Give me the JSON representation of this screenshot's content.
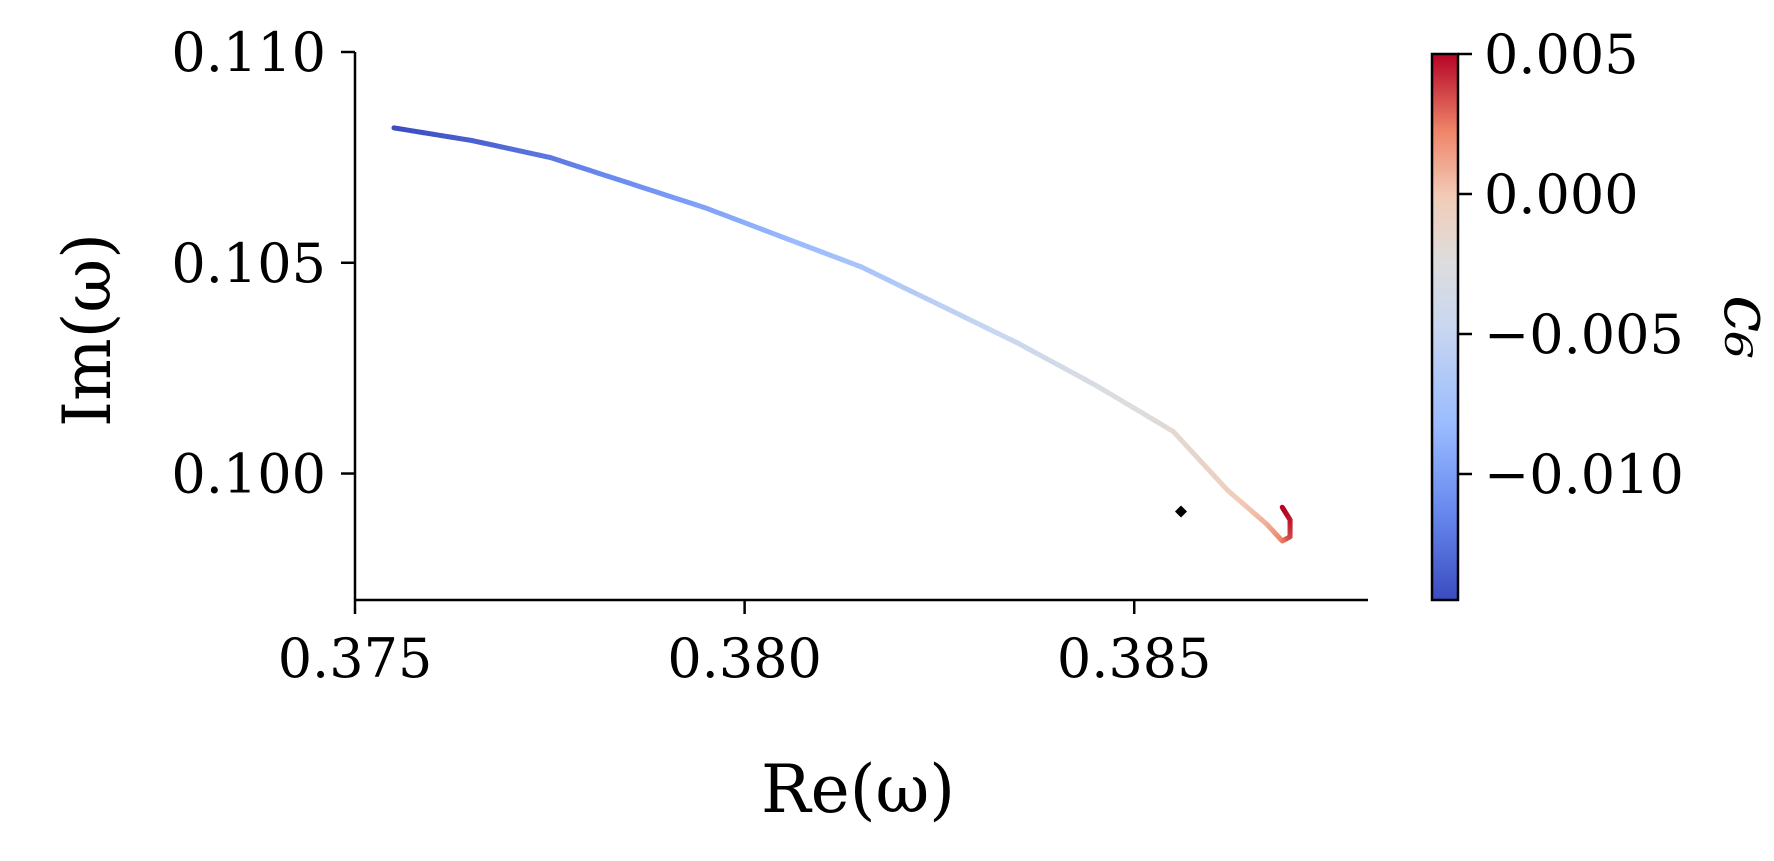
{
  "chart_data": {
    "type": "line",
    "xlabel": "Re(ω)",
    "ylabel": "Im(ω)",
    "xlim": [
      0.375,
      0.388
    ],
    "ylim": [
      0.097,
      0.11
    ],
    "xticks": [
      0.375,
      0.38,
      0.385
    ],
    "xtick_labels": [
      "0.375",
      "0.380",
      "0.385"
    ],
    "yticks": [
      0.1,
      0.105,
      0.11
    ],
    "ytick_labels": [
      "0.100",
      "0.105",
      "0.110"
    ],
    "grid": false,
    "colormap": "coolwarm",
    "colors": {
      "low": "#3b4cc0",
      "mid": "#dddddd",
      "high": "#b40426",
      "marker": "#000000"
    },
    "series": [
      {
        "x": [
          0.3755,
          0.3765,
          0.3775,
          0.3785,
          0.3795,
          0.3805,
          0.3815,
          0.3825,
          0.3835,
          0.3845,
          0.3855,
          0.3862,
          0.3867,
          0.3869,
          0.387,
          0.387,
          0.3869
        ],
        "y": [
          0.1082,
          0.1079,
          0.1075,
          0.1069,
          0.1063,
          0.1056,
          0.1049,
          0.104,
          0.1031,
          0.1021,
          0.101,
          0.0996,
          0.0988,
          0.0984,
          0.0985,
          0.0989,
          0.0992
        ],
        "c6": [
          -0.0145,
          -0.0135,
          -0.0122,
          -0.011,
          -0.0098,
          -0.0085,
          -0.0072,
          -0.0058,
          -0.0045,
          -0.003,
          -0.0018,
          -0.0006,
          0.0008,
          0.0022,
          0.0035,
          0.0045,
          0.005
        ]
      }
    ],
    "marker_point": {
      "x": 0.3856,
      "y": 0.0991
    },
    "colorbar": {
      "label": "c₆",
      "range": [
        -0.0145,
        0.005
      ],
      "ticks": [
        0.005,
        0.0,
        -0.005,
        -0.01
      ],
      "tick_labels": [
        "0.005",
        "0.000",
        "−0.005",
        "−0.010"
      ]
    }
  }
}
